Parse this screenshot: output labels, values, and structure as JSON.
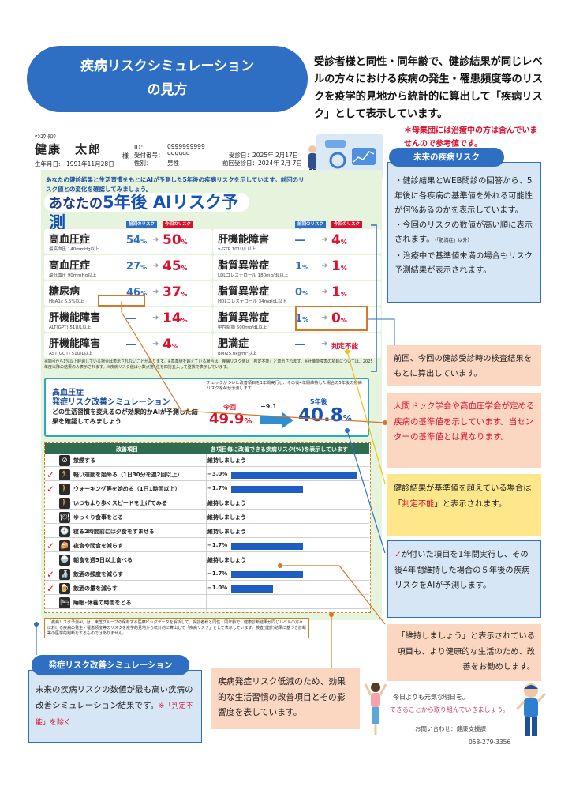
{
  "header": {
    "title_line1": "疾病リスクシミュレーション",
    "title_line2": "の見方",
    "intro": "受診者様と同性・同年齢で、健診結果が同じレベルの方々における疾病の発生・罹患頻度等のリスクを疫学的見地から統計的に算出して「疾病リスク」として表示しています。",
    "note": "＊母集団には治療中の方は含んでいませんので参考値です。"
  },
  "patient": {
    "kana": "ｹﾝｺｳ ﾀﾛｳ",
    "name": "健康　太郎",
    "honorific": "様",
    "dob": "生年月日:　1991年11月28日",
    "id_label": "ID：",
    "id_value": "0999999999",
    "receipt_label": "受付番号：",
    "receipt_value": "999999",
    "sex_label": "性別：",
    "sex_value": "男性",
    "exam_date": "受診日：2025年 2月17日",
    "prev_exam_date": "前回受診日：2024年 2月 7日"
  },
  "report": {
    "description": "あなたの健診結果と生活習慣をもとにAIが予測した5年後の疾病リスクを示しています。前回のリスク値との変化を確認してみましょう。",
    "title_pre": "あなたの",
    "title_big": "5年後 AIリスク予測",
    "col_prev": "前回のリスク",
    "col_cur": "今回のリスク",
    "left_cards": [
      {
        "name": "高血圧症",
        "std": "最高血圧 140mmHg以上",
        "prev": "54",
        "cur": "50"
      },
      {
        "name": "高血圧症",
        "std": "最低血圧 90mmHg以上",
        "prev": "27",
        "cur": "45"
      },
      {
        "name": "糖尿病",
        "std": "HbA1c 6.5%以上",
        "prev": "46",
        "cur": "37"
      },
      {
        "name": "肝機能障害",
        "std": "ALT(GPT) 51U/L以上",
        "prev": "―",
        "cur": "14"
      },
      {
        "name": "肝機能障害",
        "std": "AST(GOT) 51U/L以上",
        "prev": "―",
        "cur": "4"
      }
    ],
    "right_cards": [
      {
        "name": "肝機能障害",
        "std": "γ-GTP 101U/L以上",
        "prev": "―",
        "cur": "4"
      },
      {
        "name": "脂質異常症",
        "std": "LDLコレステロール 180mg/dL以上",
        "prev": "1",
        "cur": "1"
      },
      {
        "name": "脂質異常症",
        "std": "HDLコレステロール 34mg/dL以下",
        "prev": "0",
        "cur": "1"
      },
      {
        "name": "脂質異常症",
        "std": "中性脂肪 500mg/dL以上",
        "prev": "1",
        "cur": "0"
      },
      {
        "name": "肥満症",
        "std": "BMI25.0kg/m²以上",
        "prev": "―",
        "cur_text": "判定不能"
      }
    ],
    "pct": "%",
    "footnote": "※前回から1%以上経過している場合は表示されないことがあります。※基準値を超えている場合は、疾病リスク値は「判定不能」と表示されます。※肝機能障害の項目については、2025年度以降の結果のみ表示されます。※疾病リスク値は小数点第1位を四捨五入して整数で表示しています。"
  },
  "simulation": {
    "title1": "高血圧症",
    "title2": "発症リスク改善シミュレーション",
    "desc": "どの生活習慣を変えるのが効果的かAIが予測した結果を確認してみましょう",
    "note": "チェックがついた改善項目を1年間実行し、その後4年間維持した場合の5年後の疾病リスクをAIが予測します。",
    "now_label": "今回",
    "now_value": "49.9",
    "diff": "−9.1",
    "future_label": "5年後",
    "future_value": "40.8",
    "pct": "%"
  },
  "improvement": {
    "head_item": "改善項目",
    "head_effect": "各項目毎に改善できる疾病リスク(%)を表示しています",
    "rows": [
      {
        "checked": false,
        "icon": "no-smoking-icon",
        "glyph": "⊘",
        "label": "禁煙する",
        "value": "維持しましょう",
        "bar": 0
      },
      {
        "checked": true,
        "icon": "running-icon",
        "glyph": "🏃",
        "label": "軽い運動を始める（1日30分を週2回以上）",
        "value": "−3.0%",
        "bar": 3.0
      },
      {
        "checked": true,
        "icon": "walking-icon",
        "glyph": "🚶",
        "label": "ウォーキング等を始める（1日1時間以上）",
        "value": "−1.7%",
        "bar": 1.7
      },
      {
        "checked": false,
        "icon": "fast-walk-icon",
        "glyph": "🚶",
        "label": "いつもより歩くスピードを上げてみる",
        "value": "維持しましょう",
        "bar": 0
      },
      {
        "checked": false,
        "icon": "eat-slowly-icon",
        "glyph": "🍽",
        "label": "ゆっくり食事をとる",
        "value": "維持しましょう",
        "bar": 0
      },
      {
        "checked": false,
        "icon": "late-dinner-icon",
        "glyph": "🕘",
        "label": "寝る2時間前には夕食をすませる",
        "value": "維持しましょう",
        "bar": 0
      },
      {
        "checked": true,
        "icon": "snack-icon",
        "glyph": "🍰",
        "label": "夜食や間食を減らす",
        "value": "−1.7%",
        "bar": 1.7
      },
      {
        "checked": false,
        "icon": "breakfast-icon",
        "glyph": "🍚",
        "label": "朝食を週5日以上食べる",
        "value": "維持しましょう",
        "bar": 0
      },
      {
        "checked": true,
        "icon": "drinking-frequency-icon",
        "glyph": "🍶",
        "label": "飲酒の頻度を減らす",
        "value": "−1.7%",
        "bar": 1.7
      },
      {
        "checked": true,
        "icon": "drinking-amount-icon",
        "glyph": "🍺",
        "label": "飲酒の量を減らす",
        "value": "−1.0%",
        "bar": 1.0
      },
      {
        "checked": false,
        "icon": "sleep-icon",
        "glyph": "🛏",
        "label": "睡眠･休養の時間をとる",
        "value": "",
        "bar": 0
      }
    ],
    "disclaimer": "「疾病リスク予測AI」は、東芝グループの保有する医療ビッグデータを解析して、受診者様と同性・同年齢で、健康診断結果が同じレベルの方々における疾病の発生・罹患頻度等のリスクを疫学的見地から統計的に算出して「疾病リスク」として表示しています。検査(健診)結果に基づき診断等の医学的判断をするものではありません。"
  },
  "annotations": {
    "future_head": "未来の疾病リスク",
    "future_text1": "・健診結果とWEB問診の回答から、5年後に各疾病の基準値を外れる可能性が何%あるのかを表示しています。",
    "future_text2": "・今回のリスクの数値が高い順に表示されます。",
    "future_text2_mini": "（「肥満症」以外）",
    "future_text3": "・治療中で基準値未満の場合もリスク予測結果が表示されます。",
    "calc": "前回、今回の健診受診時の検査結果をもとに算出しています。",
    "std": "人間ドック学会や高血圧学会が定める疾病の基準値を示しています。当センターの基準値とは異なります。",
    "hantei_pre": "健診結果が基準値を超えている場合は「",
    "hantei_red": "判定不能",
    "hantei_post": "」と表示されます。",
    "check_mark": "✓",
    "check_text": "が付いた項目を1年間実行し、その後4年間維持した場合の５年後の疾病リスクをAIが予測します。",
    "maintain": "「維持しましょう」と表示されている項目も、より健康的な生活のため、改善をお勧めします。",
    "factors": "疾病発症リスク低減のため、効果的な生活習慣の改善項目とその影響度を表しています。",
    "sim_head": "発症リスク改善シミュレーション",
    "sim_text": "未来の疾病リスクの数値が最も高い疾病の改善シミュレーション結果です。",
    "sim_red": "※「判定不能」を除く"
  },
  "footer": {
    "msg1": "今日よりも元気な明日を。",
    "msg2": "できることから取り組んでいきましょう。",
    "contact": "お問い合わせ：健康支援課",
    "tel": "058-279-3356"
  },
  "colors": {
    "accent_blue": "#2e6fc3",
    "risk_red": "#d8102d",
    "report_green": "#e6f4dd",
    "annotation_peach": "#fbd7c1",
    "annotation_yellow": "#fde78a"
  }
}
